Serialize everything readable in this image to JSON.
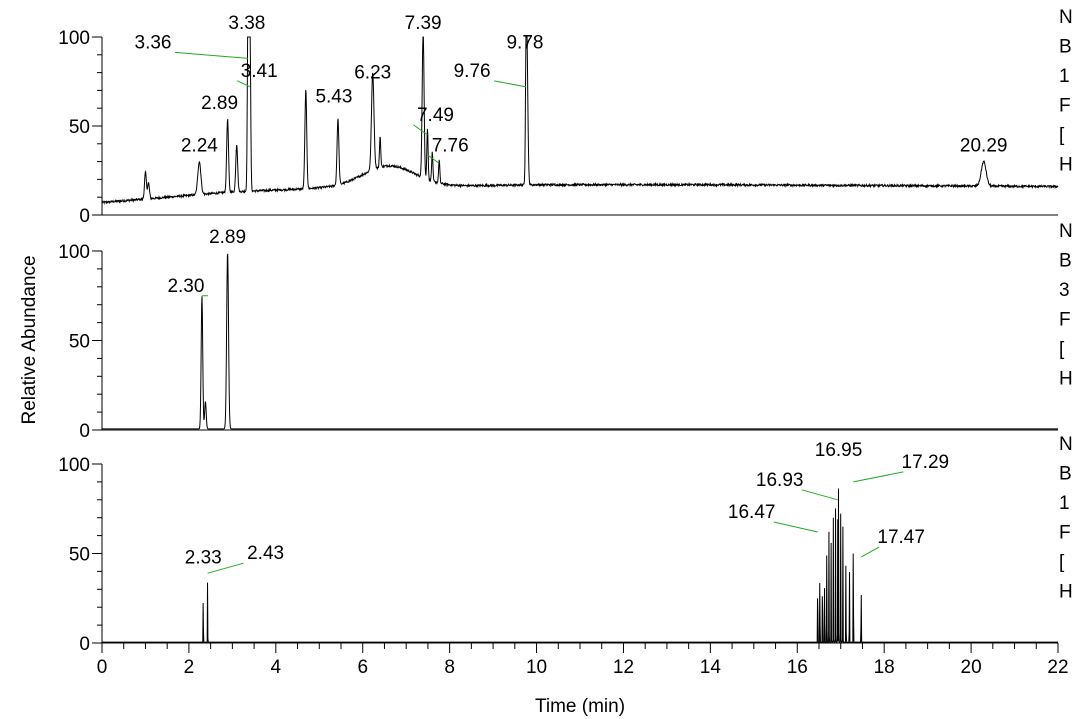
{
  "chart_data": {
    "type": "line",
    "xlabel": "Time (min)",
    "ylabel": "Relative Abundance",
    "xlim": [
      0,
      22
    ],
    "x_ticks": [
      "0",
      "2",
      "4",
      "6",
      "8",
      "10",
      "12",
      "14",
      "16",
      "18",
      "20",
      "22"
    ],
    "y_ticks": [
      "0",
      "50",
      "100"
    ],
    "line_color": "#000000",
    "leader_color": "#22aa22",
    "panels": [
      {
        "name": "panel-1",
        "ylim": [
          0,
          100
        ],
        "baseline": 7,
        "right_edge_letters": [
          "N",
          "B",
          "1",
          "F",
          "[",
          "H"
        ],
        "peaks": [
          {
            "x": 1.0,
            "y": 24,
            "w": 0.03
          },
          {
            "x": 1.07,
            "y": 18,
            "w": 0.03
          },
          {
            "x": 1.7,
            "y": 10,
            "w": 0.03
          },
          {
            "x": 2.24,
            "y": 30,
            "w": 0.05,
            "label": "2.24",
            "dx": 0,
            "dy": -10
          },
          {
            "x": 2.89,
            "y": 54,
            "w": 0.03,
            "label": "2.89",
            "dx": -8,
            "dy": -10
          },
          {
            "x": 3.1,
            "y": 40,
            "w": 0.03
          },
          {
            "x": 3.36,
            "y": 88,
            "w": 0.02,
            "label": "3.36",
            "dx": -95,
            "dy": -10,
            "leader": true
          },
          {
            "x": 3.38,
            "y": 100,
            "w": 0.03,
            "label": "3.38",
            "dx": -2,
            "dy": -8
          },
          {
            "x": 3.41,
            "y": 72,
            "w": 0.02,
            "label": "3.41",
            "dx": 9,
            "dy": -10,
            "leader": true
          },
          {
            "x": 4.69,
            "y": 70,
            "w": 0.03
          },
          {
            "x": 5.43,
            "y": 52,
            "w": 0.03,
            "label": "5.43",
            "dx": -4,
            "dy": -20
          },
          {
            "x": 6.23,
            "y": 70,
            "w": 0.04,
            "label": "6.23",
            "dx": 0,
            "dy": -12
          },
          {
            "x": 6.4,
            "y": 33,
            "w": 0.02
          },
          {
            "x": 7.39,
            "y": 100,
            "w": 0.03,
            "label": "7.39",
            "dx": 0,
            "dy": -8
          },
          {
            "x": 7.49,
            "y": 45,
            "w": 0.02,
            "label": "7.49",
            "dx": 8,
            "dy": -14,
            "leader": true
          },
          {
            "x": 7.6,
            "y": 32,
            "w": 0.02
          },
          {
            "x": 7.76,
            "y": 29,
            "w": 0.02,
            "label": "7.76",
            "dx": 11,
            "dy": -12,
            "leader": true
          },
          {
            "x": 9.76,
            "y": 72,
            "w": 0.02,
            "label": "9.76",
            "dx": -54,
            "dy": -10,
            "leader": true
          },
          {
            "x": 9.78,
            "y": 88,
            "w": 0.03,
            "label": "9.78",
            "dx": -2,
            "dy": -10
          },
          {
            "x": 20.29,
            "y": 30,
            "w": 0.08,
            "label": "20.29",
            "dx": 0,
            "dy": -10
          }
        ],
        "hump": {
          "center": 6.6,
          "height": 12,
          "width": 0.85
        },
        "drift": [
          [
            0,
            7
          ],
          [
            3,
            13
          ],
          [
            5,
            15
          ],
          [
            10,
            17
          ],
          [
            14,
            17
          ],
          [
            22,
            16
          ]
        ],
        "noise": 1.2
      },
      {
        "name": "panel-2",
        "ylim": [
          0,
          100
        ],
        "baseline": 0.6,
        "right_edge_letters": [
          "N",
          "B",
          "3",
          "F",
          "[",
          "H"
        ],
        "peaks": [
          {
            "x": 2.3,
            "y": 75,
            "w": 0.025,
            "label": "2.30",
            "dx": -16,
            "dy": -4,
            "leader": true
          },
          {
            "x": 2.38,
            "y": 16,
            "w": 0.025
          },
          {
            "x": 2.89,
            "y": 100,
            "w": 0.03,
            "label": "2.89",
            "dx": 0,
            "dy": -8
          }
        ],
        "drift": [
          [
            0,
            0.6
          ],
          [
            22,
            0.6
          ]
        ],
        "noise": 0
      },
      {
        "name": "panel-3",
        "ylim": [
          0,
          100
        ],
        "baseline": 0.5,
        "right_edge_letters": [
          "N",
          "B",
          "1",
          "F",
          "[",
          "H"
        ],
        "peaks": [
          {
            "x": 2.33,
            "y": 40,
            "w": 0.004,
            "label": "2.33",
            "dx": 0,
            "dy": -8
          },
          {
            "x": 2.43,
            "y": 39,
            "w": 0.004,
            "label": "2.43",
            "dx": 58,
            "dy": -14,
            "leader": true
          },
          {
            "x": 16.47,
            "y": 62,
            "w": 0.004,
            "label": "16.47",
            "dx": -66,
            "dy": -14,
            "leader": true
          },
          {
            "x": 16.52,
            "y": 60,
            "w": 0.004
          },
          {
            "x": 16.58,
            "y": 65,
            "w": 0.004
          },
          {
            "x": 16.63,
            "y": 55,
            "w": 0.004
          },
          {
            "x": 16.68,
            "y": 68,
            "w": 0.004
          },
          {
            "x": 16.73,
            "y": 72,
            "w": 0.004
          },
          {
            "x": 16.78,
            "y": 58,
            "w": 0.004
          },
          {
            "x": 16.83,
            "y": 70,
            "w": 0.004
          },
          {
            "x": 16.88,
            "y": 78,
            "w": 0.004
          },
          {
            "x": 16.93,
            "y": 80,
            "w": 0.004,
            "label": "16.93",
            "dx": -58,
            "dy": -14,
            "leader": true
          },
          {
            "x": 16.95,
            "y": 100,
            "w": 0.004,
            "label": "16.95",
            "dx": 0,
            "dy": -8
          },
          {
            "x": 17.0,
            "y": 75,
            "w": 0.004
          },
          {
            "x": 17.05,
            "y": 65,
            "w": 0.004
          },
          {
            "x": 17.12,
            "y": 60,
            "w": 0.004
          },
          {
            "x": 17.2,
            "y": 55,
            "w": 0.004
          },
          {
            "x": 17.29,
            "y": 90,
            "w": 0.004,
            "label": "17.29",
            "dx": 72,
            "dy": -14,
            "leader": true
          },
          {
            "x": 17.47,
            "y": 48,
            "w": 0.004,
            "label": "17.47",
            "dx": 40,
            "dy": -14,
            "leader": true
          }
        ],
        "drift": [
          [
            0,
            0.5
          ],
          [
            22,
            0.5
          ]
        ],
        "noise": 0
      }
    ]
  }
}
